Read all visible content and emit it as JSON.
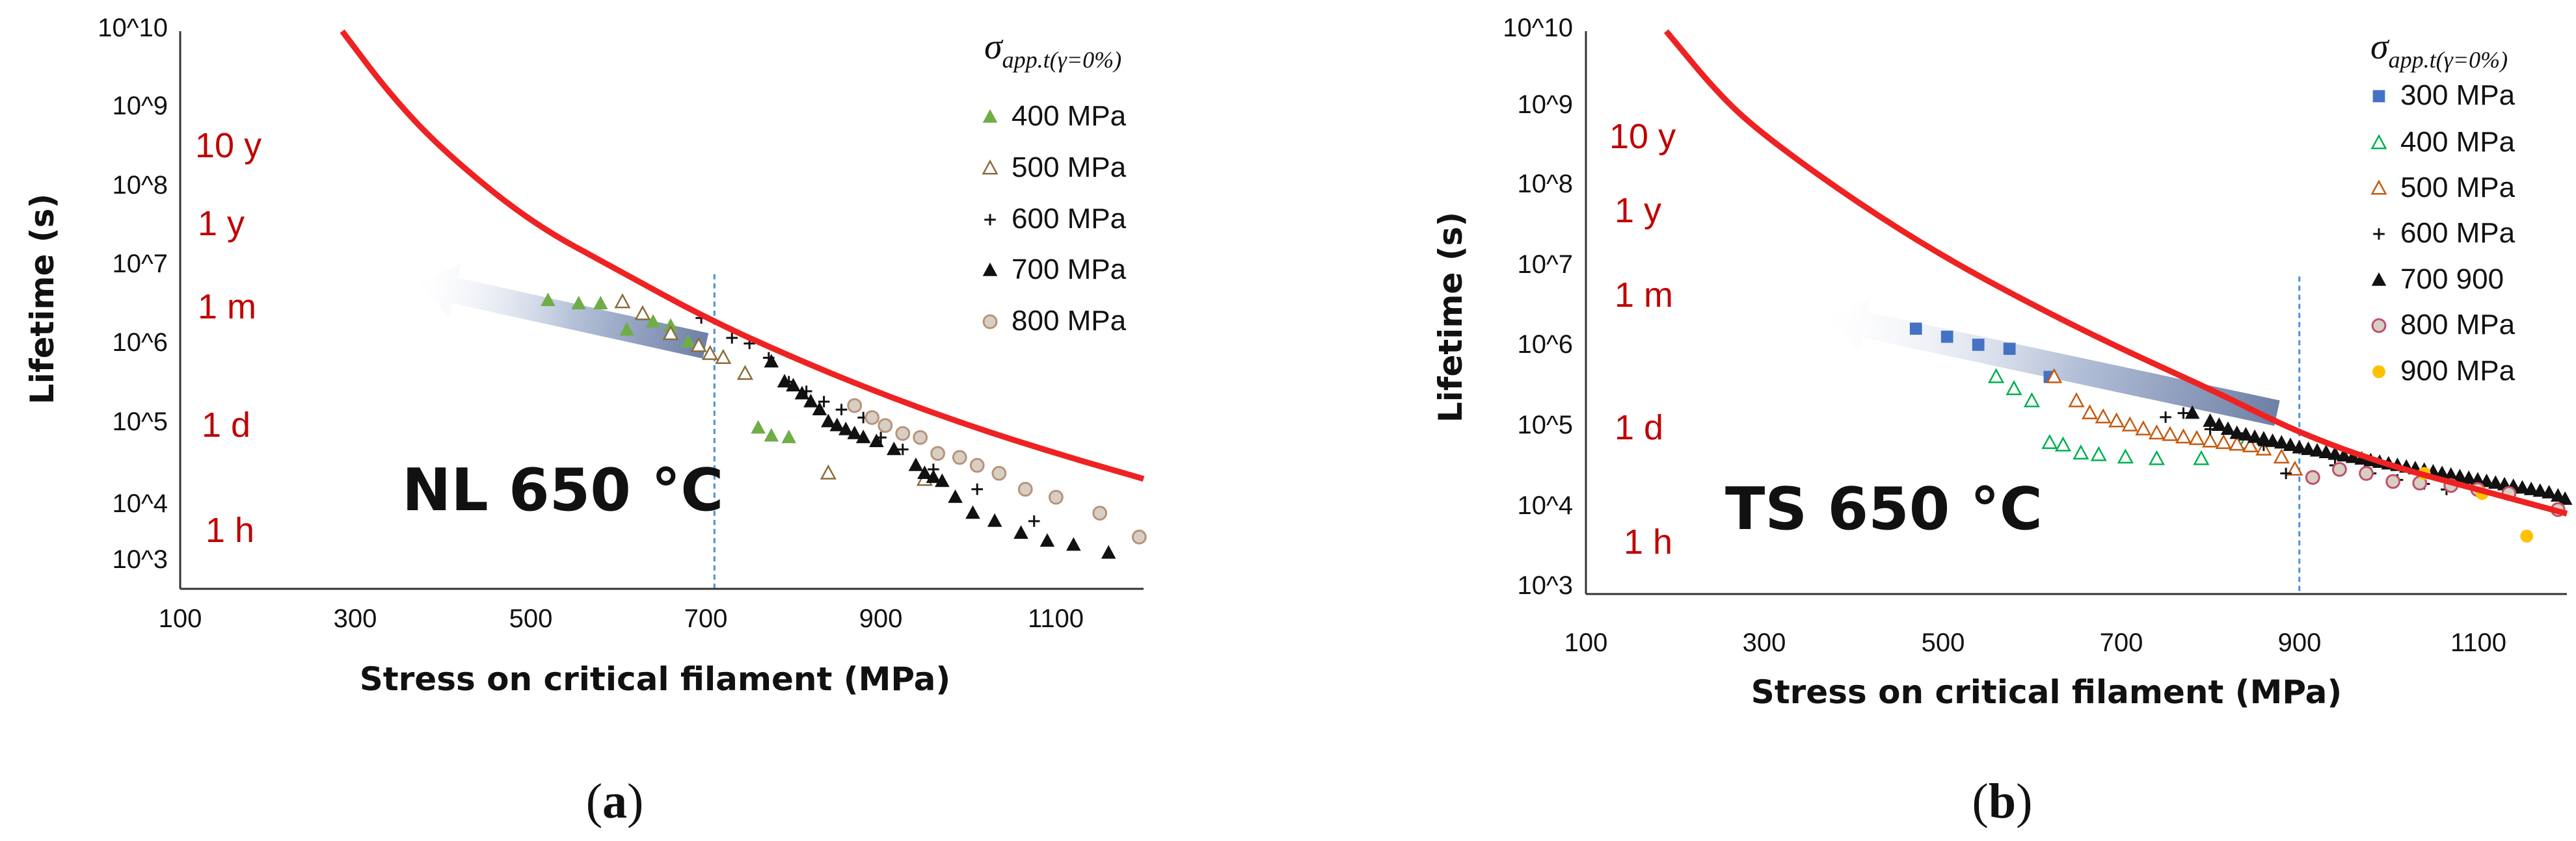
{
  "chart_data": [
    {
      "type": "scatter",
      "panel_label_prefix": "(",
      "panel_letter": "a",
      "panel_label_suffix": ")",
      "annotation": "NL 650 °C",
      "xlabel": "Stress on critical  filament (MPa)",
      "ylabel": "Lifetime (s)",
      "xlim": [
        100,
        1200
      ],
      "xticks": [
        "100",
        "300",
        "500",
        "700",
        "900",
        "1100"
      ],
      "ylim_log10": [
        3,
        10
      ],
      "yticks": [
        "10^3",
        "10^4",
        "10^5",
        "10^6",
        "10^7",
        "10^8",
        "10^9",
        "10^10"
      ],
      "duration_labels": [
        {
          "text": "10 y",
          "log10_s": 8.6
        },
        {
          "text": "1 y",
          "log10_s": 7.6
        },
        {
          "text": "1 m",
          "log10_s": 6.55
        },
        {
          "text": "1 d",
          "log10_s": 5.05
        },
        {
          "text": "1 h",
          "log10_s": 3.75
        }
      ],
      "vline_x": 710,
      "arrow": {
        "from": [
          700,
          6.05
        ],
        "to": [
          370,
          6.85
        ]
      },
      "legend": {
        "title_main": "σ",
        "title_sub": "app.t(γ=0%)",
        "position": "top-right",
        "entries": [
          {
            "label": "400 MPa",
            "marker": "triangle-filled",
            "color": "#70ad47"
          },
          {
            "label": "500 MPa",
            "marker": "triangle-open",
            "color": "#8a6d3b"
          },
          {
            "label": "600 MPa",
            "marker": "plus",
            "color": "#111111"
          },
          {
            "label": "700 MPa",
            "marker": "triangle-filled",
            "color": "#111111"
          },
          {
            "label": "800 MPa",
            "marker": "circle",
            "color": "#b8937a"
          }
        ]
      },
      "curve": {
        "color": "#ee2222",
        "points": [
          [
            285,
            10
          ],
          [
            340,
            9.2
          ],
          [
            400,
            8.5
          ],
          [
            500,
            7.6
          ],
          [
            600,
            7.0
          ],
          [
            700,
            6.4
          ],
          [
            800,
            5.9
          ],
          [
            900,
            5.45
          ],
          [
            1000,
            5.05
          ],
          [
            1100,
            4.7
          ],
          [
            1200,
            4.38
          ]
        ]
      },
      "series": [
        {
          "name": "400 MPa",
          "points": [
            [
              520,
              6.62
            ],
            [
              555,
              6.58
            ],
            [
              580,
              6.58
            ],
            [
              610,
              6.25
            ],
            [
              640,
              6.35
            ],
            [
              660,
              6.3
            ],
            [
              680,
              6.1
            ],
            [
              760,
              5.02
            ],
            [
              775,
              4.92
            ],
            [
              795,
              4.9
            ]
          ]
        },
        {
          "name": "500 MPa",
          "points": [
            [
              605,
              6.6
            ],
            [
              628,
              6.45
            ],
            [
              660,
              6.2
            ],
            [
              692,
              6.05
            ],
            [
              705,
              5.95
            ],
            [
              720,
              5.9
            ],
            [
              745,
              5.7
            ],
            [
              840,
              4.45
            ],
            [
              950,
              4.37
            ]
          ]
        },
        {
          "name": "600 MPa",
          "points": [
            [
              695,
              6.4
            ],
            [
              730,
              6.15
            ],
            [
              750,
              6.08
            ],
            [
              772,
              5.9
            ],
            [
              795,
              5.6
            ],
            [
              815,
              5.48
            ],
            [
              835,
              5.35
            ],
            [
              855,
              5.25
            ],
            [
              880,
              5.15
            ],
            [
              900,
              4.9
            ],
            [
              925,
              4.75
            ],
            [
              960,
              4.5
            ],
            [
              1010,
              4.25
            ],
            [
              1075,
              3.85
            ]
          ]
        },
        {
          "name": "700 MPa",
          "points": [
            [
              775,
              5.85
            ],
            [
              790,
              5.6
            ],
            [
              800,
              5.55
            ],
            [
              810,
              5.45
            ],
            [
              820,
              5.35
            ],
            [
              830,
              5.25
            ],
            [
              840,
              5.1
            ],
            [
              850,
              5.05
            ],
            [
              860,
              5.0
            ],
            [
              870,
              4.95
            ],
            [
              880,
              4.9
            ],
            [
              895,
              4.85
            ],
            [
              915,
              4.75
            ],
            [
              940,
              4.55
            ],
            [
              950,
              4.45
            ],
            [
              960,
              4.4
            ],
            [
              970,
              4.35
            ],
            [
              985,
              4.15
            ],
            [
              1005,
              3.95
            ],
            [
              1030,
              3.85
            ],
            [
              1060,
              3.7
            ],
            [
              1090,
              3.6
            ],
            [
              1120,
              3.55
            ],
            [
              1160,
              3.45
            ]
          ]
        },
        {
          "name": "800 MPa",
          "points": [
            [
              870,
              5.3
            ],
            [
              890,
              5.15
            ],
            [
              905,
              5.05
            ],
            [
              925,
              4.95
            ],
            [
              945,
              4.9
            ],
            [
              965,
              4.7
            ],
            [
              990,
              4.65
            ],
            [
              1010,
              4.55
            ],
            [
              1035,
              4.45
            ],
            [
              1065,
              4.25
            ],
            [
              1100,
              4.15
            ],
            [
              1150,
              3.95
            ],
            [
              1195,
              3.65
            ]
          ]
        }
      ]
    },
    {
      "type": "scatter",
      "panel_label_prefix": "(",
      "panel_letter": "b",
      "panel_label_suffix": ")",
      "annotation": "TS 650 °C",
      "xlabel": "Stress on critical  filament (MPa)",
      "ylabel": "Lifetime (s)",
      "xlim": [
        100,
        1200
      ],
      "xticks": [
        "100",
        "300",
        "500",
        "700",
        "900",
        "1100"
      ],
      "ylim_log10": [
        3,
        10
      ],
      "yticks": [
        "10^3",
        "10^4",
        "10^5",
        "10^6",
        "10^7",
        "10^8",
        "10^9",
        "10^10"
      ],
      "duration_labels": [
        {
          "text": "10 y",
          "log10_s": 8.6
        },
        {
          "text": "1 y",
          "log10_s": 7.7
        },
        {
          "text": "1 m",
          "log10_s": 6.65
        },
        {
          "text": "1 d",
          "log10_s": 5.05
        },
        {
          "text": "1 h",
          "log10_s": 3.65
        }
      ],
      "vline_x": 900,
      "arrow": {
        "from": [
          875,
          5.25
        ],
        "to": [
          370,
          6.45
        ]
      },
      "legend": {
        "title_main": "σ",
        "title_sub": "app.t(γ=0%)",
        "position": "top-right",
        "entries": [
          {
            "label": "300 MPa",
            "marker": "square",
            "color": "#4472c4"
          },
          {
            "label": "400 MPa",
            "marker": "triangle-open",
            "color": "#00b050"
          },
          {
            "label": "500 MPa",
            "marker": "triangle-open",
            "color": "#c55a11"
          },
          {
            "label": "600 MPa",
            "marker": "plus",
            "color": "#111111"
          },
          {
            "label": "700 900",
            "marker": "triangle-filled",
            "color": "#111111"
          },
          {
            "label": "800 MPa",
            "marker": "circle",
            "color": "#c0506a"
          },
          {
            "label": "900 MPa",
            "marker": "circle-filled",
            "color": "#ffc000"
          }
        ]
      },
      "curve": {
        "color": "#ee2222",
        "points": [
          [
            190,
            10
          ],
          [
            250,
            9.2
          ],
          [
            300,
            8.7
          ],
          [
            400,
            7.9
          ],
          [
            500,
            7.2
          ],
          [
            600,
            6.6
          ],
          [
            700,
            6.05
          ],
          [
            800,
            5.55
          ],
          [
            900,
            5.0
          ],
          [
            1000,
            4.6
          ],
          [
            1100,
            4.3
          ],
          [
            1200,
            4.0
          ]
        ]
      },
      "series": [
        {
          "name": "300 MPa",
          "points": [
            [
              470,
              6.3
            ],
            [
              505,
              6.2
            ],
            [
              540,
              6.1
            ],
            [
              575,
              6.05
            ],
            [
              620,
              5.7
            ]
          ]
        },
        {
          "name": "400 MPa",
          "points": [
            [
              560,
              5.7
            ],
            [
              580,
              5.55
            ],
            [
              600,
              5.4
            ],
            [
              620,
              4.88
            ],
            [
              635,
              4.85
            ],
            [
              655,
              4.75
            ],
            [
              675,
              4.73
            ],
            [
              705,
              4.7
            ],
            [
              740,
              4.68
            ],
            [
              790,
              4.68
            ],
            [
              840,
              4.88
            ]
          ]
        },
        {
          "name": "500 MPa",
          "points": [
            [
              625,
              5.7
            ],
            [
              650,
              5.4
            ],
            [
              665,
              5.25
            ],
            [
              680,
              5.2
            ],
            [
              695,
              5.15
            ],
            [
              710,
              5.1
            ],
            [
              725,
              5.05
            ],
            [
              740,
              5.0
            ],
            [
              755,
              4.98
            ],
            [
              770,
              4.95
            ],
            [
              785,
              4.93
            ],
            [
              800,
              4.9
            ],
            [
              815,
              4.88
            ],
            [
              830,
              4.86
            ],
            [
              845,
              4.84
            ],
            [
              860,
              4.8
            ],
            [
              880,
              4.7
            ],
            [
              895,
              4.55
            ]
          ]
        },
        {
          "name": "600 MPa",
          "points": [
            [
              750,
              5.2
            ],
            [
              770,
              5.25
            ],
            [
              800,
              5.05
            ],
            [
              830,
              5.0
            ],
            [
              860,
              4.85
            ],
            [
              885,
              4.5
            ],
            [
              940,
              4.6
            ],
            [
              980,
              4.5
            ],
            [
              1010,
              4.42
            ],
            [
              1040,
              4.37
            ],
            [
              1065,
              4.3
            ]
          ]
        },
        {
          "name": "700 900",
          "points": [
            [
              780,
              5.25
            ],
            [
              800,
              5.15
            ],
            [
              810,
              5.1
            ],
            [
              820,
              5.05
            ],
            [
              830,
              5.0
            ],
            [
              840,
              4.98
            ],
            [
              850,
              4.95
            ],
            [
              860,
              4.93
            ],
            [
              870,
              4.9
            ],
            [
              880,
              4.88
            ],
            [
              890,
              4.85
            ],
            [
              900,
              4.82
            ],
            [
              910,
              4.8
            ],
            [
              920,
              4.78
            ],
            [
              930,
              4.76
            ],
            [
              940,
              4.74
            ],
            [
              950,
              4.72
            ],
            [
              960,
              4.7
            ],
            [
              970,
              4.68
            ],
            [
              980,
              4.66
            ],
            [
              990,
              4.64
            ],
            [
              1000,
              4.62
            ],
            [
              1010,
              4.6
            ],
            [
              1020,
              4.58
            ],
            [
              1030,
              4.56
            ],
            [
              1040,
              4.54
            ],
            [
              1050,
              4.52
            ],
            [
              1060,
              4.5
            ],
            [
              1070,
              4.48
            ],
            [
              1080,
              4.46
            ],
            [
              1090,
              4.44
            ],
            [
              1100,
              4.42
            ],
            [
              1110,
              4.4
            ],
            [
              1120,
              4.38
            ],
            [
              1130,
              4.36
            ],
            [
              1140,
              4.34
            ],
            [
              1150,
              4.32
            ],
            [
              1160,
              4.3
            ],
            [
              1170,
              4.28
            ],
            [
              1180,
              4.26
            ],
            [
              1190,
              4.22
            ],
            [
              1198,
              4.18
            ]
          ]
        },
        {
          "name": "800 MPa",
          "points": [
            [
              915,
              4.45
            ],
            [
              945,
              4.55
            ],
            [
              975,
              4.5
            ],
            [
              1005,
              4.4
            ],
            [
              1035,
              4.38
            ],
            [
              1070,
              4.35
            ],
            [
              1100,
              4.3
            ],
            [
              1135,
              4.25
            ],
            [
              1190,
              4.05
            ]
          ]
        },
        {
          "name": "900 MPa",
          "points": [
            [
              1040,
              4.5
            ],
            [
              1105,
              4.25
            ],
            [
              1155,
              3.72
            ]
          ]
        }
      ]
    }
  ]
}
